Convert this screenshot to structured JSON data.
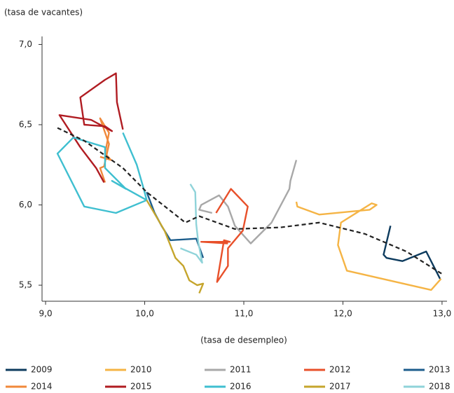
{
  "chart_data": {
    "type": "line",
    "y_label": "(tasa de vacantes)",
    "x_label": "(tasa de desempleo)",
    "xlim": [
      8.95,
      13.05
    ],
    "ylim": [
      5.4,
      7.05
    ],
    "xticks": [
      {
        "value": 9,
        "label": "9,0"
      },
      {
        "value": 10,
        "label": "10,0"
      },
      {
        "value": 11,
        "label": "11,0"
      },
      {
        "value": 12,
        "label": "12,0"
      },
      {
        "value": 13,
        "label": "13,0"
      }
    ],
    "yticks": [
      {
        "value": 5.5,
        "label": "5,5"
      },
      {
        "value": 6,
        "label": "6,0"
      },
      {
        "value": 6.5,
        "label": "6,5"
      },
      {
        "value": 7,
        "label": "7,0"
      }
    ],
    "series": [
      {
        "name": "2009",
        "color": "#0d3b5e",
        "x": [
          12.48,
          12.41,
          12.44,
          12.6,
          12.84,
          12.98
        ],
        "values": [
          5.87,
          5.69,
          5.67,
          5.65,
          5.71,
          5.54
        ]
      },
      {
        "name": "2010",
        "color": "#f5b445",
        "x": [
          12.99,
          12.89,
          12.04,
          11.95,
          11.98,
          12.29,
          12.34,
          12.27,
          11.76,
          11.54,
          11.53
        ],
        "values": [
          5.54,
          5.47,
          5.59,
          5.75,
          5.89,
          6.01,
          6.0,
          5.97,
          5.94,
          5.99,
          6.02
        ]
      },
      {
        "name": "2011",
        "color": "#a8a8a8",
        "x": [
          11.53,
          11.47,
          11.46,
          11.28,
          11.07,
          10.91,
          10.84,
          10.75,
          10.57,
          10.55,
          10.68
        ],
        "values": [
          6.28,
          6.15,
          6.1,
          5.89,
          5.76,
          5.87,
          5.99,
          6.06,
          6.0,
          5.97,
          5.95
        ]
      },
      {
        "name": "2012",
        "color": "#e8502a",
        "x": [
          10.72,
          10.87,
          11.04,
          10.99,
          10.84,
          10.84,
          10.73,
          10.8,
          10.86,
          10.57,
          10.84
        ],
        "values": [
          5.95,
          6.1,
          5.99,
          5.84,
          5.73,
          5.62,
          5.52,
          5.78,
          5.77,
          5.77,
          5.76
        ]
      },
      {
        "name": "2013",
        "color": "#1c5d8c",
        "x": [
          10.59,
          10.52,
          10.26,
          10.17,
          10.1,
          10.02
        ],
        "values": [
          5.67,
          5.79,
          5.78,
          5.87,
          5.95,
          6.08
        ]
      },
      {
        "name": "2014",
        "color": "#f0883a",
        "x": [
          9.6,
          9.55,
          9.59,
          9.64,
          9.55,
          9.64,
          9.6,
          9.66,
          9.55
        ],
        "values": [
          6.14,
          6.23,
          6.24,
          6.38,
          6.54,
          6.45,
          6.32,
          6.28,
          6.3
        ]
      },
      {
        "name": "2015",
        "color": "#b01c22",
        "x": [
          9.59,
          9.51,
          9.35,
          9.14,
          9.46,
          9.67,
          9.6,
          9.39,
          9.35,
          9.6,
          9.71,
          9.72,
          9.78
        ],
        "values": [
          6.14,
          6.23,
          6.36,
          6.56,
          6.53,
          6.46,
          6.49,
          6.5,
          6.67,
          6.78,
          6.82,
          6.64,
          6.47
        ]
      },
      {
        "name": "2016",
        "color": "#3fbfd0",
        "x": [
          9.78,
          9.92,
          9.99,
          10.02,
          9.71,
          9.39,
          9.12,
          9.28,
          9.6,
          9.6,
          9.81,
          9.67,
          10.02
        ],
        "values": [
          6.45,
          6.25,
          6.1,
          6.03,
          5.95,
          5.99,
          6.32,
          6.42,
          6.36,
          6.23,
          6.1,
          6.15,
          6.03
        ]
      },
      {
        "name": "2017",
        "color": "#c5a52c",
        "x": [
          10.02,
          10.2,
          10.31,
          10.39,
          10.45,
          10.53,
          10.59,
          10.55
        ],
        "values": [
          6.03,
          5.84,
          5.67,
          5.62,
          5.53,
          5.5,
          5.51,
          5.45
        ]
      },
      {
        "name": "2018",
        "color": "#8fd3d9",
        "x": [
          10.46,
          10.51,
          10.52,
          10.54,
          10.58,
          10.52,
          10.36
        ],
        "values": [
          6.13,
          6.08,
          5.88,
          5.77,
          5.64,
          5.69,
          5.73
        ]
      }
    ],
    "trend": {
      "color": "#222222",
      "dashed": true,
      "x": [
        9.12,
        9.39,
        9.78,
        10.02,
        10.41,
        10.55,
        10.91,
        11.37,
        11.76,
        12.22,
        12.64,
        13.0
      ],
      "values": [
        6.48,
        6.4,
        6.23,
        6.08,
        5.89,
        5.93,
        5.85,
        5.86,
        5.89,
        5.82,
        5.71,
        5.57
      ]
    }
  }
}
